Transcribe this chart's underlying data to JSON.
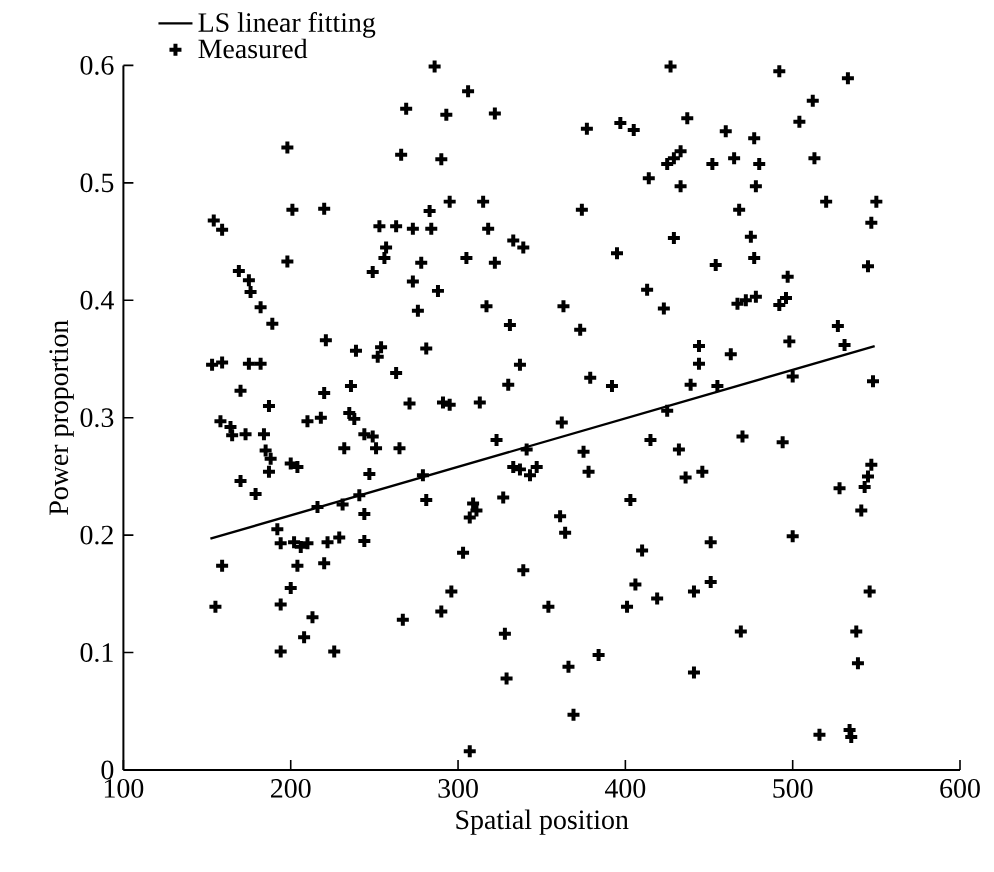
{
  "chart_data": {
    "type": "scatter",
    "xlabel": "Spatial position",
    "ylabel": "Power proportion",
    "xlim": [
      100,
      600
    ],
    "xticks": [
      100,
      200,
      300,
      400,
      500,
      600
    ],
    "ylim": [
      0,
      0.6
    ],
    "yticks": [
      0,
      0.1,
      0.2,
      0.3,
      0.4,
      0.5,
      0.6
    ],
    "legend": "top left",
    "grid": false,
    "series": [
      {
        "name": "LS linear fitting",
        "type": "line",
        "color": "#000000",
        "marker": "none",
        "line_style": "solid",
        "x": [
          152,
          549
        ],
        "values": [
          0.197,
          0.361
        ]
      },
      {
        "name": "Measured",
        "color": "#000000",
        "marker": "cross",
        "x": [
          154,
          159,
          198,
          201,
          220,
          198,
          169,
          175,
          176,
          182,
          189,
          153,
          159,
          175,
          182,
          221,
          239,
          254,
          252,
          170,
          187,
          236,
          158,
          164,
          165,
          173,
          184,
          185,
          188,
          187,
          200,
          204,
          210,
          218,
          220,
          235,
          238,
          232,
          244,
          251,
          249,
          247,
          170,
          179,
          244,
          244,
          159,
          155,
          192,
          194,
          202,
          210,
          222,
          229,
          220,
          206,
          204,
          200,
          194,
          213,
          208,
          194,
          226,
          216,
          231,
          241,
          286,
          306,
          269,
          293,
          322,
          377,
          266,
          290,
          295,
          315,
          283,
          253,
          263,
          273,
          284,
          318,
          374,
          333,
          339,
          395,
          257,
          256,
          249,
          305,
          278,
          322,
          273,
          288,
          276,
          317,
          331,
          363,
          373,
          281,
          337,
          263,
          330,
          379,
          392,
          271,
          291,
          295,
          313,
          427,
          492,
          533,
          512,
          504,
          437,
          397,
          405,
          460,
          477,
          433,
          429,
          425,
          452,
          465,
          480,
          513,
          414,
          433,
          478,
          468,
          520,
          550,
          547,
          429,
          475,
          477,
          454,
          545,
          413,
          423,
          497,
          467,
          472,
          478,
          492,
          496,
          444,
          444,
          463,
          498,
          527,
          531,
          500,
          455,
          439,
          548,
          265,
          279,
          323,
          362,
          341,
          333,
          337,
          343,
          347,
          375,
          378,
          281,
          309,
          311,
          307,
          327,
          361,
          364,
          303,
          339,
          296,
          290,
          267,
          354,
          328,
          329,
          366,
          384,
          369,
          307,
          425,
          415,
          432,
          470,
          494,
          436,
          446,
          403,
          528,
          547,
          545,
          543,
          541,
          410,
          451,
          500,
          406,
          419,
          401,
          441,
          451,
          546,
          469,
          538,
          539,
          441,
          516,
          534,
          535
        ],
        "values": [
          0.468,
          0.46,
          0.53,
          0.477,
          0.478,
          0.433,
          0.425,
          0.417,
          0.407,
          0.394,
          0.38,
          0.345,
          0.347,
          0.346,
          0.346,
          0.366,
          0.357,
          0.36,
          0.352,
          0.323,
          0.31,
          0.327,
          0.297,
          0.292,
          0.285,
          0.286,
          0.286,
          0.272,
          0.265,
          0.254,
          0.261,
          0.258,
          0.297,
          0.3,
          0.321,
          0.304,
          0.299,
          0.274,
          0.286,
          0.274,
          0.284,
          0.252,
          0.246,
          0.235,
          0.218,
          0.195,
          0.174,
          0.139,
          0.205,
          0.193,
          0.194,
          0.193,
          0.194,
          0.198,
          0.176,
          0.19,
          0.174,
          0.155,
          0.141,
          0.13,
          0.113,
          0.101,
          0.101,
          0.224,
          0.226,
          0.234,
          0.599,
          0.578,
          0.563,
          0.558,
          0.559,
          0.546,
          0.524,
          0.52,
          0.484,
          0.484,
          0.476,
          0.463,
          0.463,
          0.461,
          0.461,
          0.461,
          0.477,
          0.451,
          0.445,
          0.44,
          0.445,
          0.436,
          0.424,
          0.436,
          0.432,
          0.432,
          0.416,
          0.408,
          0.391,
          0.395,
          0.379,
          0.395,
          0.375,
          0.359,
          0.345,
          0.338,
          0.328,
          0.334,
          0.327,
          0.312,
          0.313,
          0.311,
          0.313,
          0.599,
          0.595,
          0.589,
          0.57,
          0.552,
          0.555,
          0.551,
          0.545,
          0.544,
          0.538,
          0.527,
          0.521,
          0.516,
          0.516,
          0.521,
          0.516,
          0.521,
          0.504,
          0.497,
          0.497,
          0.477,
          0.484,
          0.484,
          0.466,
          0.453,
          0.454,
          0.436,
          0.43,
          0.429,
          0.409,
          0.393,
          0.42,
          0.397,
          0.4,
          0.403,
          0.396,
          0.402,
          0.361,
          0.346,
          0.354,
          0.365,
          0.378,
          0.362,
          0.335,
          0.327,
          0.328,
          0.331,
          0.274,
          0.251,
          0.281,
          0.296,
          0.273,
          0.258,
          0.256,
          0.251,
          0.258,
          0.271,
          0.254,
          0.23,
          0.227,
          0.221,
          0.215,
          0.232,
          0.216,
          0.202,
          0.185,
          0.17,
          0.152,
          0.135,
          0.128,
          0.139,
          0.116,
          0.078,
          0.088,
          0.098,
          0.047,
          0.016,
          0.306,
          0.281,
          0.273,
          0.284,
          0.279,
          0.249,
          0.254,
          0.23,
          0.24,
          0.26,
          0.25,
          0.241,
          0.221,
          0.187,
          0.194,
          0.199,
          0.158,
          0.146,
          0.139,
          0.152,
          0.16,
          0.152,
          0.118,
          0.118,
          0.091,
          0.083,
          0.03,
          0.034,
          0.028
        ]
      }
    ]
  }
}
